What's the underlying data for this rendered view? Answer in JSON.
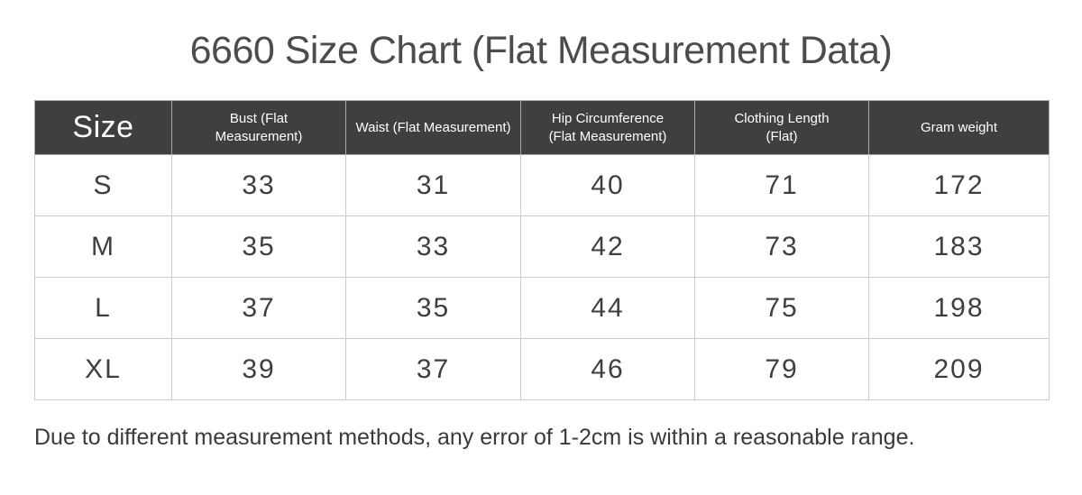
{
  "page": {
    "title": "6660 Size Chart (Flat Measurement Data)"
  },
  "table": {
    "columns": [
      {
        "line1": "Size",
        "line2": ""
      },
      {
        "line1": "Bust (Flat",
        "line2": "Measurement)"
      },
      {
        "line1": "Waist  (Flat Measurement)",
        "line2": ""
      },
      {
        "line1": "Hip Circumference",
        "line2": "(Flat Measurement)"
      },
      {
        "line1": "Clothing Length",
        "line2": "(Flat)"
      },
      {
        "line1": "Gram weight",
        "line2": ""
      }
    ],
    "rows": [
      [
        "S",
        "33",
        "31",
        "40",
        "71",
        "172"
      ],
      [
        "M",
        "35",
        "33",
        "42",
        "73",
        "183"
      ],
      [
        "L",
        "37",
        "35",
        "44",
        "75",
        "198"
      ],
      [
        "XL",
        "39",
        "37",
        "46",
        "79",
        "209"
      ]
    ]
  },
  "footnote": "Due to different measurement methods, any error of 1-2cm is within a reasonable range.",
  "colors": {
    "header_bg": "#3f3f3f",
    "header_text": "#ffffff",
    "body_text": "#3f3f3f",
    "outer_border": "#979797",
    "cell_border": "#cccccc"
  },
  "chart_data": {
    "type": "table",
    "title": "6660 Size Chart (Flat Measurement Data)",
    "columns": [
      "Size",
      "Bust (Flat Measurement)",
      "Waist (Flat Measurement)",
      "Hip Circumference (Flat Measurement)",
      "Clothing Length (Flat)",
      "Gram weight"
    ],
    "rows": [
      [
        "S",
        33,
        31,
        40,
        71,
        172
      ],
      [
        "M",
        35,
        33,
        42,
        73,
        183
      ],
      [
        "L",
        37,
        35,
        44,
        75,
        198
      ],
      [
        "XL",
        39,
        37,
        46,
        79,
        209
      ]
    ],
    "footnote": "Due to different measurement methods, any error of 1-2cm is within a reasonable range."
  }
}
